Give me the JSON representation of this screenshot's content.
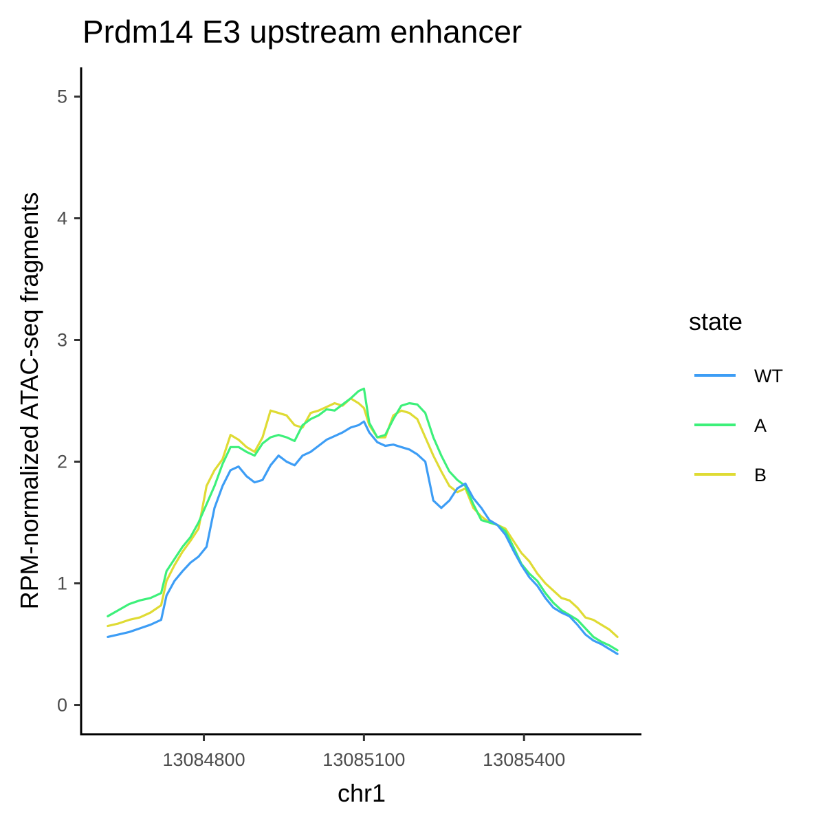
{
  "chart_data": {
    "type": "line",
    "title": "Prdm14 E3 upstream enhancer",
    "xlabel": "chr1",
    "ylabel": "RPM-normalized ATAC-seq fragments",
    "xlim": [
      13084570,
      13085620
    ],
    "ylim": [
      -0.24,
      5.24
    ],
    "xticks": [
      13084800,
      13085100,
      13085400
    ],
    "xtick_labels": [
      "13084800",
      "13085100",
      "13085400"
    ],
    "yticks": [
      0,
      1,
      2,
      3,
      4,
      5
    ],
    "ytick_labels": [
      "0",
      "1",
      "2",
      "3",
      "4",
      "5"
    ],
    "grid": false,
    "legend": {
      "title": "state",
      "position": "right"
    },
    "series": [
      {
        "name": "WT",
        "color": "#3d9df5",
        "x": [
          13084620,
          13084640,
          13084660,
          13084680,
          13084700,
          13084720,
          13084730,
          13084745,
          13084760,
          13084775,
          13084790,
          13084805,
          13084820,
          13084835,
          13084850,
          13084865,
          13084880,
          13084895,
          13084910,
          13084925,
          13084940,
          13084955,
          13084970,
          13084985,
          13085000,
          13085015,
          13085030,
          13085045,
          13085060,
          13085075,
          13085090,
          13085100,
          13085110,
          13085125,
          13085140,
          13085155,
          13085170,
          13085185,
          13085200,
          13085215,
          13085230,
          13085245,
          13085260,
          13085275,
          13085290,
          13085305,
          13085320,
          13085335,
          13085350,
          13085365,
          13085380,
          13085395,
          13085410,
          13085425,
          13085440,
          13085455,
          13085470,
          13085485,
          13085500,
          13085515,
          13085530,
          13085545,
          13085560,
          13085575
        ],
        "y": [
          0.56,
          0.58,
          0.6,
          0.63,
          0.66,
          0.7,
          0.9,
          1.02,
          1.1,
          1.17,
          1.22,
          1.3,
          1.62,
          1.8,
          1.93,
          1.96,
          1.88,
          1.83,
          1.85,
          1.97,
          2.05,
          2.0,
          1.97,
          2.05,
          2.08,
          2.13,
          2.18,
          2.21,
          2.24,
          2.28,
          2.3,
          2.33,
          2.24,
          2.16,
          2.13,
          2.14,
          2.12,
          2.1,
          2.06,
          2.0,
          1.68,
          1.62,
          1.68,
          1.78,
          1.82,
          1.7,
          1.62,
          1.52,
          1.48,
          1.4,
          1.27,
          1.15,
          1.05,
          0.98,
          0.88,
          0.8,
          0.76,
          0.73,
          0.66,
          0.58,
          0.53,
          0.5,
          0.46,
          0.42
        ]
      },
      {
        "name": "A",
        "color": "#3df07a",
        "x": [
          13084620,
          13084640,
          13084660,
          13084680,
          13084700,
          13084720,
          13084730,
          13084745,
          13084760,
          13084775,
          13084790,
          13084805,
          13084820,
          13084835,
          13084850,
          13084865,
          13084880,
          13084895,
          13084910,
          13084925,
          13084940,
          13084955,
          13084970,
          13084985,
          13085000,
          13085015,
          13085030,
          13085045,
          13085060,
          13085075,
          13085090,
          13085100,
          13085110,
          13085125,
          13085140,
          13085155,
          13085170,
          13085185,
          13085200,
          13085215,
          13085230,
          13085245,
          13085260,
          13085275,
          13085290,
          13085305,
          13085320,
          13085335,
          13085350,
          13085365,
          13085380,
          13085395,
          13085410,
          13085425,
          13085440,
          13085455,
          13085470,
          13085485,
          13085500,
          13085515,
          13085530,
          13085545,
          13085560,
          13085575
        ],
        "y": [
          0.73,
          0.78,
          0.83,
          0.86,
          0.88,
          0.92,
          1.1,
          1.2,
          1.3,
          1.38,
          1.5,
          1.65,
          1.8,
          1.98,
          2.12,
          2.12,
          2.08,
          2.05,
          2.15,
          2.2,
          2.22,
          2.2,
          2.17,
          2.3,
          2.35,
          2.38,
          2.43,
          2.42,
          2.47,
          2.52,
          2.58,
          2.6,
          2.32,
          2.2,
          2.22,
          2.35,
          2.46,
          2.48,
          2.47,
          2.4,
          2.2,
          2.05,
          1.92,
          1.85,
          1.8,
          1.65,
          1.52,
          1.5,
          1.48,
          1.43,
          1.3,
          1.16,
          1.08,
          1.02,
          0.92,
          0.84,
          0.78,
          0.74,
          0.7,
          0.63,
          0.56,
          0.52,
          0.49,
          0.45
        ]
      },
      {
        "name": "B",
        "color": "#dfdb34",
        "x": [
          13084620,
          13084640,
          13084660,
          13084680,
          13084700,
          13084720,
          13084730,
          13084745,
          13084760,
          13084775,
          13084790,
          13084805,
          13084820,
          13084835,
          13084850,
          13084865,
          13084880,
          13084895,
          13084910,
          13084925,
          13084940,
          13084955,
          13084970,
          13084985,
          13085000,
          13085015,
          13085030,
          13085045,
          13085060,
          13085075,
          13085090,
          13085100,
          13085110,
          13085125,
          13085140,
          13085155,
          13085170,
          13085185,
          13085200,
          13085215,
          13085230,
          13085245,
          13085260,
          13085275,
          13085290,
          13085305,
          13085320,
          13085335,
          13085350,
          13085365,
          13085380,
          13085395,
          13085410,
          13085425,
          13085440,
          13085455,
          13085470,
          13085485,
          13085500,
          13085515,
          13085530,
          13085545,
          13085560,
          13085575
        ],
        "y": [
          0.65,
          0.67,
          0.7,
          0.72,
          0.76,
          0.82,
          1.02,
          1.15,
          1.26,
          1.35,
          1.45,
          1.8,
          1.93,
          2.02,
          2.22,
          2.18,
          2.12,
          2.08,
          2.2,
          2.42,
          2.4,
          2.38,
          2.3,
          2.28,
          2.4,
          2.42,
          2.45,
          2.48,
          2.46,
          2.52,
          2.48,
          2.44,
          2.3,
          2.2,
          2.2,
          2.38,
          2.42,
          2.4,
          2.35,
          2.2,
          2.05,
          1.92,
          1.8,
          1.75,
          1.78,
          1.62,
          1.55,
          1.5,
          1.48,
          1.45,
          1.35,
          1.25,
          1.18,
          1.08,
          1.0,
          0.94,
          0.88,
          0.86,
          0.8,
          0.72,
          0.7,
          0.66,
          0.62,
          0.56
        ]
      }
    ]
  }
}
